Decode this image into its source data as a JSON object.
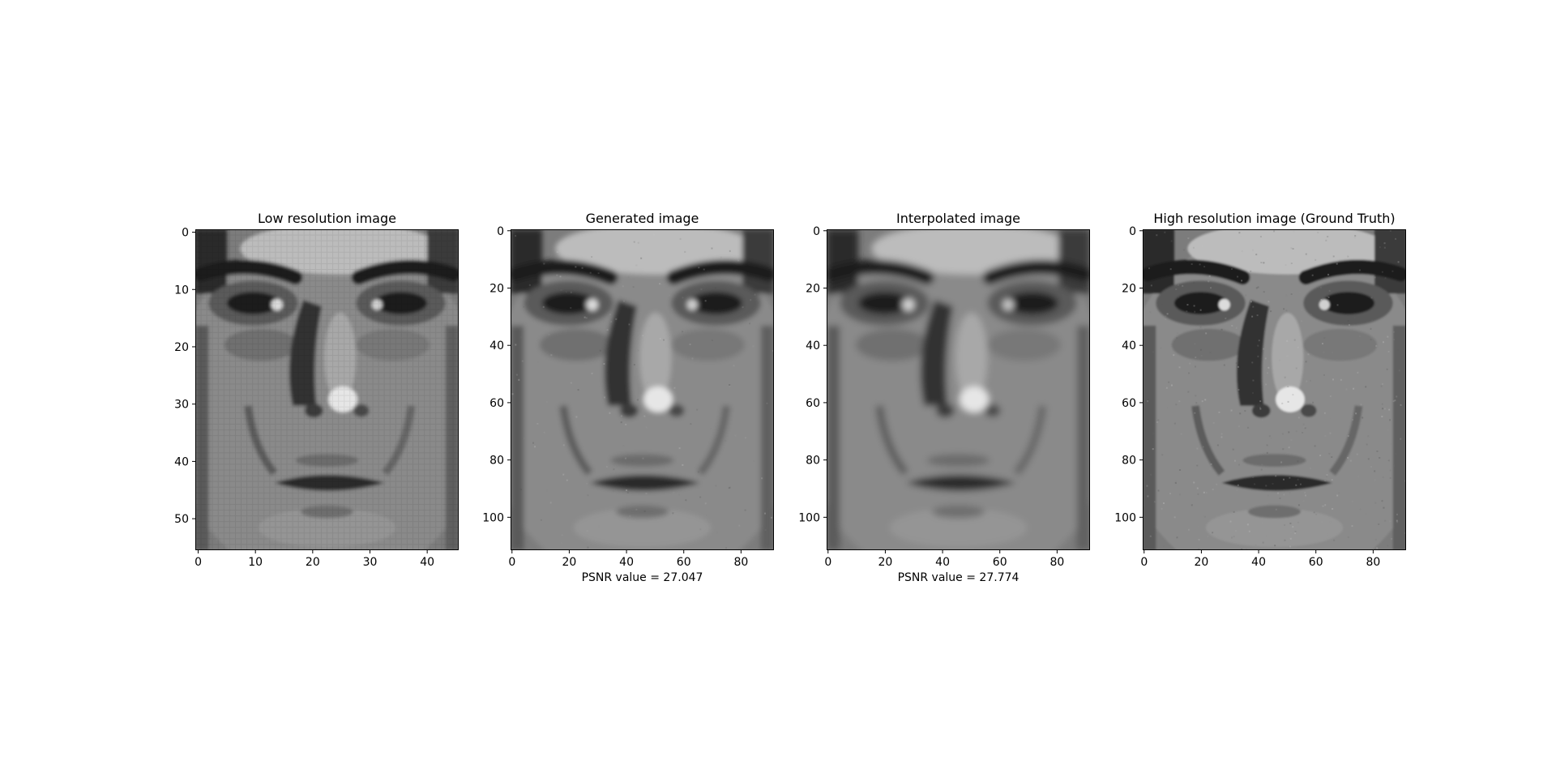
{
  "figure": {
    "panels": [
      {
        "title": "Low resolution image",
        "xlabel": "",
        "variant": "low"
      },
      {
        "title": "Generated image",
        "xlabel": "PSNR value = 27.047",
        "variant": "generated"
      },
      {
        "title": "Interpolated image",
        "xlabel": "PSNR value = 27.774",
        "variant": "interp"
      },
      {
        "title": "High resolution image (Ground Truth)",
        "xlabel": "",
        "variant": "high"
      }
    ]
  },
  "chart_data": [
    {
      "type": "heatmap",
      "title": "Low resolution image",
      "xlabel": "",
      "ylabel": "",
      "image_size": [
        46,
        56
      ],
      "xlim": [
        -0.5,
        45.5
      ],
      "ylim": [
        55.5,
        -0.5
      ],
      "xticks": [
        0,
        10,
        20,
        30,
        40
      ],
      "yticks": [
        0,
        10,
        20,
        30,
        40,
        50
      ],
      "colormap": "gray",
      "grid": false
    },
    {
      "type": "heatmap",
      "title": "Generated image",
      "xlabel": "PSNR value = 27.047",
      "ylabel": "",
      "image_size": [
        92,
        112
      ],
      "xlim": [
        -0.5,
        91.5
      ],
      "ylim": [
        111.5,
        -0.5
      ],
      "xticks": [
        0,
        20,
        40,
        60,
        80
      ],
      "yticks": [
        0,
        20,
        40,
        60,
        80,
        100
      ],
      "colormap": "gray",
      "grid": false
    },
    {
      "type": "heatmap",
      "title": "Interpolated image",
      "xlabel": "PSNR value = 27.774",
      "ylabel": "",
      "image_size": [
        92,
        112
      ],
      "xlim": [
        -0.5,
        91.5
      ],
      "ylim": [
        111.5,
        -0.5
      ],
      "xticks": [
        0,
        20,
        40,
        60,
        80
      ],
      "yticks": [
        0,
        20,
        40,
        60,
        80,
        100
      ],
      "colormap": "gray",
      "grid": false
    },
    {
      "type": "heatmap",
      "title": "High resolution image (Ground Truth)",
      "xlabel": "",
      "ylabel": "",
      "image_size": [
        92,
        112
      ],
      "xlim": [
        -0.5,
        91.5
      ],
      "ylim": [
        111.5,
        -0.5
      ],
      "xticks": [
        0,
        20,
        40,
        60,
        80
      ],
      "yticks": [
        0,
        20,
        40,
        60,
        80,
        100
      ],
      "colormap": "gray",
      "grid": false
    }
  ]
}
